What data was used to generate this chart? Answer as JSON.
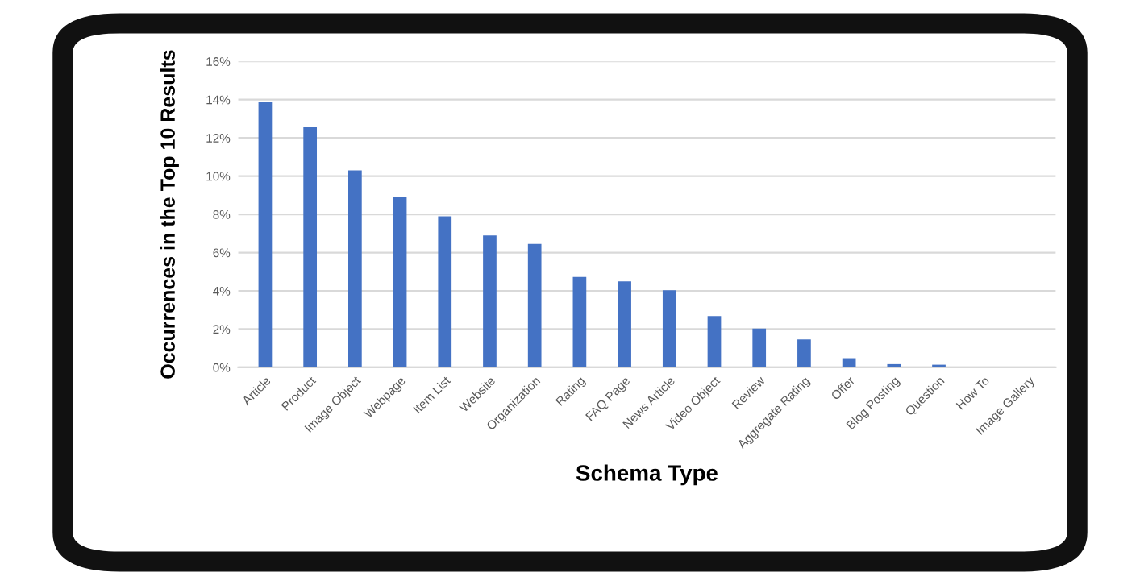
{
  "chart_data": {
    "type": "bar",
    "xlabel": "Schema Type",
    "ylabel": "Occurrences in the Top 10 Results",
    "categories": [
      "Article",
      "Product",
      "Image Object",
      "Webpage",
      "Item List",
      "Website",
      "Organization",
      "Rating",
      "FAQ Page",
      "News Article",
      "Video Object",
      "Review",
      "Aggregate Rating",
      "Offer",
      "Blog Posting",
      "Question",
      "How To",
      "Image Gallery"
    ],
    "values": [
      13.9,
      12.6,
      10.3,
      8.9,
      7.9,
      6.9,
      6.45,
      4.73,
      4.5,
      4.03,
      2.68,
      2.03,
      1.46,
      0.48,
      0.17,
      0.14,
      0.03,
      0.03
    ],
    "color": "#4472c4",
    "ylim": [
      0,
      16
    ],
    "yticks": [
      {
        "value": 0,
        "label": "0%"
      },
      {
        "value": 2,
        "label": "2%"
      },
      {
        "value": 4,
        "label": "4%"
      },
      {
        "value": 6,
        "label": "6%"
      },
      {
        "value": 8,
        "label": "8%"
      },
      {
        "value": 10,
        "label": "10%"
      },
      {
        "value": 12,
        "label": "12%"
      },
      {
        "value": 14,
        "label": "14%"
      },
      {
        "value": 16,
        "label": "16%"
      }
    ],
    "grid": "y"
  }
}
